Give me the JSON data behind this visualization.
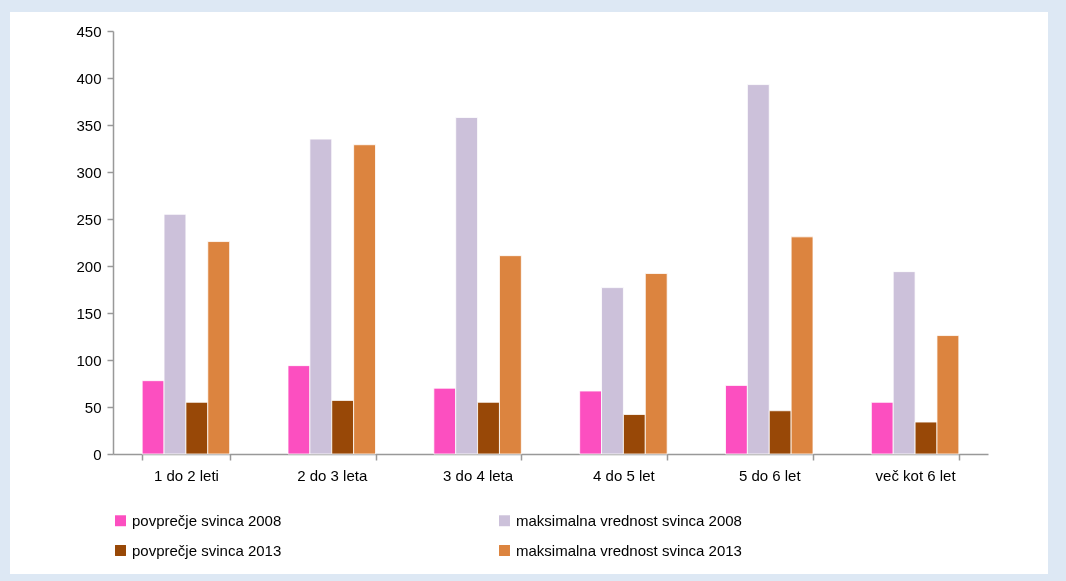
{
  "chart_data": {
    "type": "bar",
    "categories": [
      "1 do 2 leti",
      "2 do 3 leta",
      "3 do 4 leta",
      "4 do 5 let",
      "5 do 6 let",
      "več kot 6 let"
    ],
    "series": [
      {
        "name": "povprečje svinca 2008",
        "color": "#fc4fc0",
        "values": [
          78,
          94,
          70,
          67,
          73,
          55
        ]
      },
      {
        "name": "maksimalna  vrednost svinca 2008",
        "color": "#ccc1da",
        "values": [
          255,
          335,
          358,
          177,
          393,
          194
        ]
      },
      {
        "name": "povprečje svinca 2013",
        "color": "#984807",
        "values": [
          55,
          57,
          55,
          42,
          46,
          34
        ]
      },
      {
        "name": "maksimalna  vrednost svinca 2013",
        "color": "#dc843f",
        "values": [
          226,
          329,
          211,
          192,
          231,
          126
        ]
      }
    ],
    "ylim": [
      0,
      450
    ],
    "yticks": [
      0,
      50,
      100,
      150,
      200,
      250,
      300,
      350,
      400,
      450
    ],
    "grid": false,
    "legend": "bottom"
  }
}
